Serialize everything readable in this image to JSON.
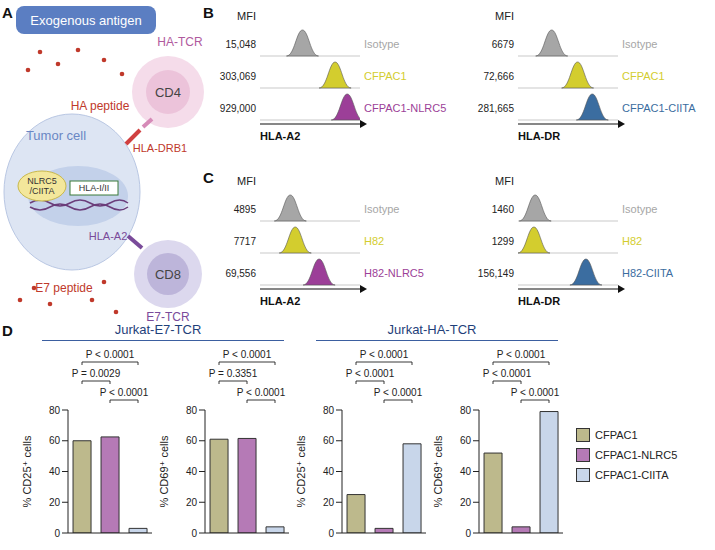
{
  "diagram": {
    "panel": "A",
    "title": "Exogenous antigen",
    "cell": "Tumor cell",
    "genes": "NLRC5 /CIITA",
    "promoter": "HLA-I/II",
    "cd4": {
      "name": "CD4",
      "receptor": "HA-TCR",
      "peptide": "HA peptide",
      "mhc": "HLA-DRB1"
    },
    "cd8": {
      "name": "CD8",
      "receptor": "E7-TCR",
      "peptide": "E7 peptide",
      "mhc": "HLA-A2"
    }
  },
  "chart_data": [
    {
      "type": "flow_histogram",
      "panel": "B",
      "value_title": "MFI",
      "xlabel": "HLA-A2",
      "xlim": [
        300,
        3000000
      ],
      "log": "x",
      "tick_labels": false,
      "series": [
        {
          "name": "Isotype",
          "color": "#a6a6a6",
          "value": 15048,
          "value_label": "15,048"
        },
        {
          "name": "CFPAC1",
          "color": "#d3cd2e",
          "value": 303069,
          "value_label": "303,069"
        },
        {
          "name": "CFPAC1-NLRC5",
          "color": "#9c3f98",
          "value": 929000,
          "value_label": "929,000"
        }
      ]
    },
    {
      "type": "flow_histogram",
      "panel": "B",
      "value_title": "MFI",
      "xlabel": "HLA-DR",
      "xlim": [
        300,
        3000000
      ],
      "log": "x",
      "tick_labels": false,
      "series": [
        {
          "name": "Isotype",
          "color": "#a6a6a6",
          "value": 6679,
          "value_label": "6679"
        },
        {
          "name": "CFPAC1",
          "color": "#d3cd2e",
          "value": 72666,
          "value_label": "72,666"
        },
        {
          "name": "CFPAC1-CIITA",
          "color": "#3b6da0",
          "value": 281665,
          "value_label": "281,665"
        }
      ]
    },
    {
      "type": "flow_histogram",
      "panel": "C",
      "value_title": "MFI",
      "xlabel": "HLA-A2",
      "xlim": [
        300,
        3000000
      ],
      "log": "x",
      "tick_labels": false,
      "series": [
        {
          "name": "Isotype",
          "color": "#a6a6a6",
          "value": 4895,
          "value_label": "4895"
        },
        {
          "name": "H82",
          "color": "#d3cd2e",
          "value": 7717,
          "value_label": "7717"
        },
        {
          "name": "H82-NLRC5",
          "color": "#9c3f98",
          "value": 69556,
          "value_label": "69,556"
        }
      ]
    },
    {
      "type": "flow_histogram",
      "panel": "C",
      "value_title": "MFI",
      "xlabel": "HLA-DR",
      "xlim": [
        300,
        3000000
      ],
      "log": "x",
      "tick_labels": false,
      "series": [
        {
          "name": "Isotype",
          "color": "#a6a6a6",
          "value": 1460,
          "value_label": "1460"
        },
        {
          "name": "H82",
          "color": "#d3cd2e",
          "value": 1299,
          "value_label": "1299"
        },
        {
          "name": "H82-CIITA",
          "color": "#3b6da0",
          "value": 156149,
          "value_label": "156,149"
        }
      ]
    },
    {
      "type": "bar",
      "panel": "D",
      "group": "Jurkat-E7-TCR",
      "ylabel": "% CD25⁺ cells",
      "categories": [
        "CFPAC1",
        "CFPAC1-NLRC5",
        "CFPAC1-CIITA"
      ],
      "values": [
        60,
        62.5,
        3
      ],
      "colors": [
        "#bdb98c",
        "#b57ab6",
        "#c8d6ea"
      ],
      "ylim": [
        0,
        80
      ],
      "yticks": [
        0,
        20,
        40,
        60,
        80
      ],
      "tick_labels": "y",
      "legend": "right",
      "comparisons": [
        {
          "pair": [
            0,
            2
          ],
          "label": "P < 0.0001"
        },
        {
          "pair": [
            0,
            1
          ],
          "label": "P = 0.0029"
        },
        {
          "pair": [
            1,
            2
          ],
          "label": "P < 0.0001"
        }
      ]
    },
    {
      "type": "bar",
      "panel": "D",
      "group": "Jurkat-E7-TCR",
      "ylabel": "% CD69⁺ cells",
      "categories": [
        "CFPAC1",
        "CFPAC1-NLRC5",
        "CFPAC1-CIITA"
      ],
      "values": [
        61,
        61.5,
        4
      ],
      "colors": [
        "#bdb98c",
        "#b57ab6",
        "#c8d6ea"
      ],
      "ylim": [
        0,
        80
      ],
      "yticks": [
        0,
        20,
        40,
        60,
        80
      ],
      "tick_labels": "y",
      "legend": "right",
      "comparisons": [
        {
          "pair": [
            0,
            2
          ],
          "label": "P < 0.0001"
        },
        {
          "pair": [
            0,
            1
          ],
          "label": "P = 0.3351"
        },
        {
          "pair": [
            1,
            2
          ],
          "label": "P < 0.0001"
        }
      ]
    },
    {
      "type": "bar",
      "panel": "D",
      "group": "Jurkat-HA-TCR",
      "ylabel": "% CD25⁺ cells",
      "categories": [
        "CFPAC1",
        "CFPAC1-NLRC5",
        "CFPAC1-CIITA"
      ],
      "values": [
        25,
        3,
        58
      ],
      "colors": [
        "#bdb98c",
        "#b57ab6",
        "#c8d6ea"
      ],
      "ylim": [
        0,
        80
      ],
      "yticks": [
        0,
        20,
        40,
        60,
        80
      ],
      "tick_labels": "y",
      "legend": "right",
      "comparisons": [
        {
          "pair": [
            0,
            2
          ],
          "label": "P < 0.0001"
        },
        {
          "pair": [
            0,
            1
          ],
          "label": "P < 0.0001"
        },
        {
          "pair": [
            1,
            2
          ],
          "label": "P < 0.0001"
        }
      ]
    },
    {
      "type": "bar",
      "panel": "D",
      "group": "Jurkat-HA-TCR",
      "ylabel": "% CD69⁺ cells",
      "categories": [
        "CFPAC1",
        "CFPAC1-NLRC5",
        "CFPAC1-CIITA"
      ],
      "values": [
        52,
        4,
        79
      ],
      "colors": [
        "#bdb98c",
        "#b57ab6",
        "#c8d6ea"
      ],
      "ylim": [
        0,
        80
      ],
      "yticks": [
        0,
        20,
        40,
        60,
        80
      ],
      "tick_labels": "y",
      "legend": "right",
      "comparisons": [
        {
          "pair": [
            0,
            2
          ],
          "label": "P < 0.0001"
        },
        {
          "pair": [
            0,
            1
          ],
          "label": "P < 0.0001"
        },
        {
          "pair": [
            1,
            2
          ],
          "label": "P < 0.0001"
        }
      ]
    }
  ]
}
